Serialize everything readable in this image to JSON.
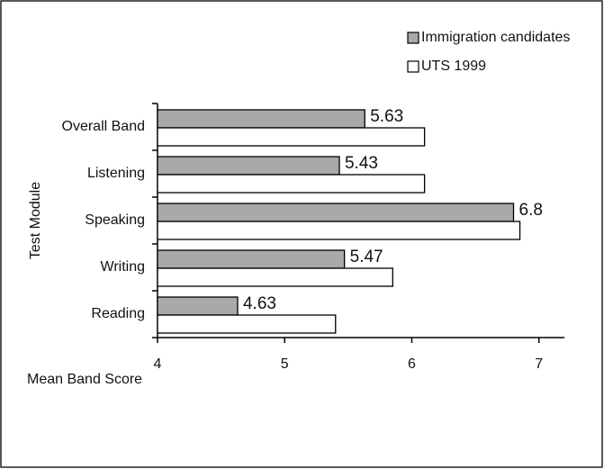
{
  "chart_data": {
    "type": "bar",
    "orientation": "horizontal",
    "x_label": "Mean Band Score",
    "y_label": "Test Module",
    "categories": [
      "Overall Band",
      "Listening",
      "Speaking",
      "Writing",
      "Reading"
    ],
    "series": [
      {
        "name": "Immigration candidates",
        "color": "#a9a9a9",
        "labels": true,
        "values": [
          5.63,
          5.43,
          6.8,
          5.47,
          4.63
        ]
      },
      {
        "name": "UTS 1999",
        "color": "#ffffff",
        "labels": false,
        "values": [
          6.1,
          6.1,
          6.85,
          5.85,
          5.4
        ]
      }
    ],
    "xlim": [
      4,
      7.2
    ],
    "xticks": [
      4,
      5,
      6,
      7
    ],
    "grid": false,
    "legend": "top-right"
  }
}
